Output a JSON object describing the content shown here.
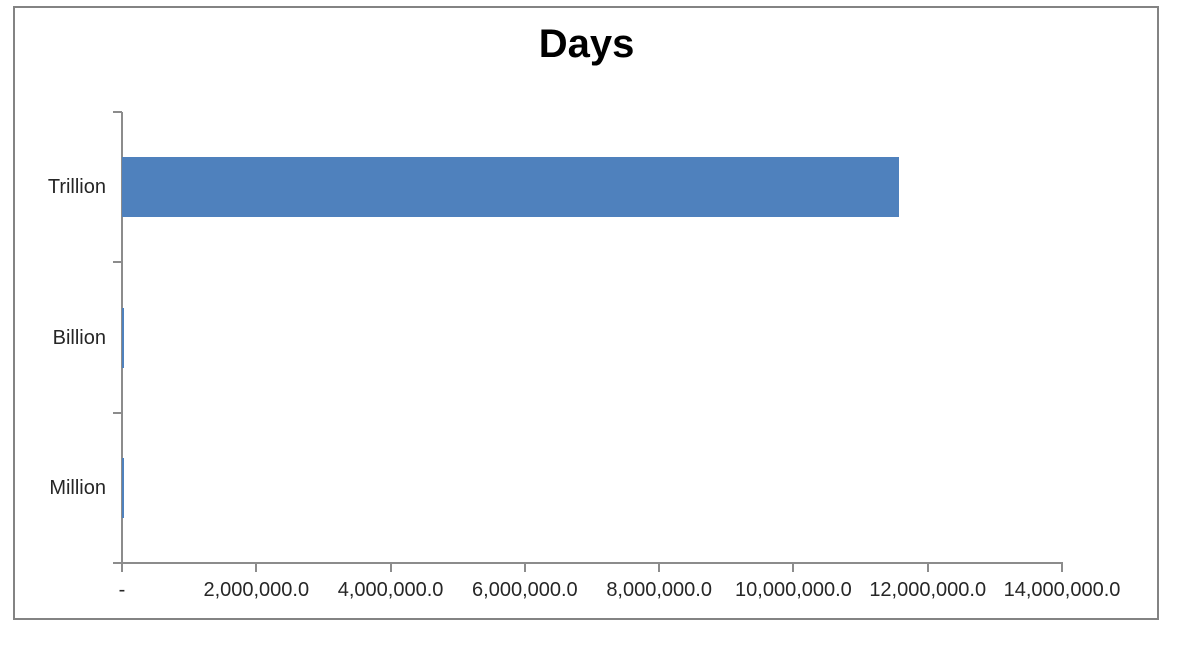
{
  "chart_data": {
    "type": "bar",
    "orientation": "horizontal",
    "title": "Days",
    "categories": [
      "Trillion",
      "Billion",
      "Million"
    ],
    "values": [
      11574074.1,
      11574.1,
      11.6
    ],
    "xlabel": "",
    "ylabel": "",
    "xlim": [
      0,
      14000000
    ],
    "x_tick_interval": 2000000,
    "x_tick_labels": [
      "-",
      "2,000,000.0",
      "4,000,000.0",
      "6,000,000.0",
      "8,000,000.0",
      "10,000,000.0",
      "12,000,000.0",
      "14,000,000.0"
    ],
    "grid": false,
    "legend": "none",
    "colors": {
      "bar": "#4F81BD",
      "axis": "#8C8C8C",
      "frame_border": "#838383",
      "label_text": "#262626",
      "title_text": "#000000"
    }
  }
}
